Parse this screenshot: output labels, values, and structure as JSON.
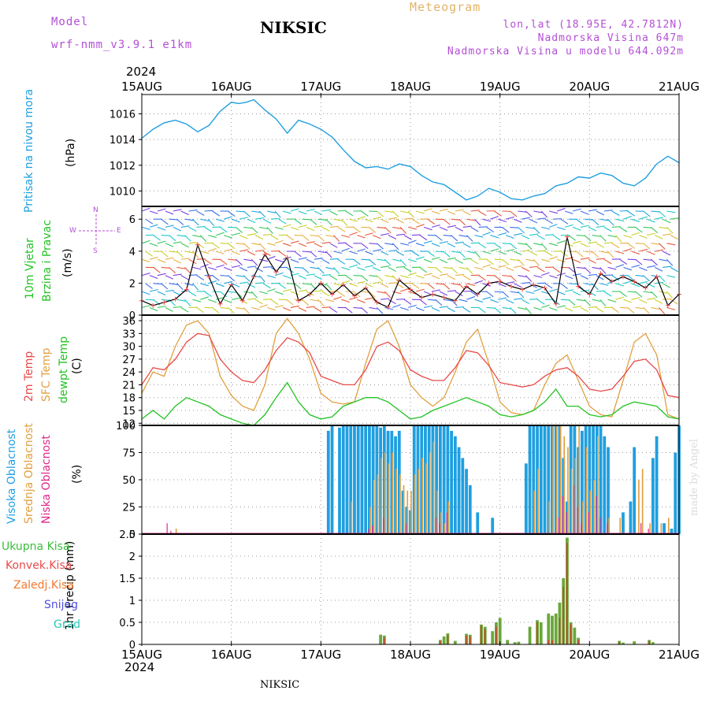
{
  "header": {
    "model_label": "Model",
    "model_name": "wrf-nmm_v3.9.1 e1km",
    "title": "NIKSIC",
    "meteogram": "Meteogram",
    "lonlat": "lon,lat (18.95E, 42.7812N)",
    "elev": "Nadmorska Visina 647m",
    "elev_model": "Nadmorska Visina u modelu 644.092m",
    "year_top": "2024",
    "year_bottom": "2024",
    "footer": "NIKSIC",
    "watermark": "made by Angel"
  },
  "labels": {
    "pressure_title": "Pritisak na nivou mora",
    "pressure_unit": "(hPa)",
    "wind_title_1": "10m Vjetar",
    "wind_title_2": "Brzina i Pravac",
    "wind_unit": "(m/s)",
    "compass_n": "N",
    "compass_s": "S",
    "compass_w": "W",
    "compass_e": "E",
    "temp_2m": "2m Temp",
    "temp_sfc": "SFC Temp",
    "temp_dew": "dewpt Temp",
    "temp_unit": "(C)",
    "cloud_high": "Visoka Oblacnost",
    "cloud_mid": "Srednja Oblacnost",
    "cloud_low": "Niska Oblacnost",
    "cloud_unit": "(%)",
    "precip_unit": "1hr Precip (mm)",
    "legend_total": "Ukupna Kisa",
    "legend_conv": "Konvek.Kisa",
    "legend_frozen": "Zaledj.Kisa",
    "legend_snow": "Snijeg",
    "legend_hail": "Grad"
  },
  "colors": {
    "pressure": "#1f9fe0",
    "wind_label": "#22c322",
    "compass": "#b44fd6",
    "temp_2m": "#e84a4a",
    "temp_sfc": "#e0a040",
    "temp_dew": "#22c322",
    "cloud_high": "#1f9fe0",
    "cloud_mid": "#e0a040",
    "cloud_low": "#e0268a",
    "precip_total": "#6aa83a",
    "precip_conv": "#d63a2a",
    "precip_frozen": "#f07a30",
    "precip_snow": "#5050e0",
    "precip_hail": "#28c8b8"
  },
  "chart_data": {
    "type": "line",
    "x_ticks": [
      "15AUG",
      "16AUG",
      "17AUG",
      "18AUG",
      "19AUG",
      "20AUG",
      "21AUG"
    ],
    "x_range_hours": [
      0,
      144
    ],
    "pressure": {
      "ylabel": "(hPa)",
      "ylim": [
        1008.8,
        1017.5
      ],
      "yticks": [
        1010,
        1012,
        1014,
        1016
      ],
      "x_hours": [
        0,
        3,
        6,
        9,
        12,
        15,
        18,
        21,
        24,
        26,
        28,
        30,
        33,
        36,
        39,
        42,
        45,
        48,
        51,
        54,
        57,
        60,
        63,
        66,
        69,
        72,
        75,
        78,
        81,
        84,
        87,
        90,
        93,
        96,
        99,
        102,
        105,
        108,
        111,
        114,
        117,
        120,
        123,
        126,
        129,
        132,
        135,
        138,
        141,
        144
      ],
      "values": [
        1014.1,
        1014.8,
        1015.3,
        1015.5,
        1015.2,
        1014.6,
        1015.1,
        1016.2,
        1016.9,
        1016.8,
        1016.9,
        1017.1,
        1016.3,
        1015.6,
        1014.5,
        1015.5,
        1015.2,
        1014.8,
        1014.2,
        1013.2,
        1012.3,
        1011.8,
        1011.9,
        1011.7,
        1012.1,
        1011.9,
        1011.2,
        1010.7,
        1010.5,
        1009.9,
        1009.3,
        1009.6,
        1010.2,
        1009.9,
        1009.4,
        1009.3,
        1009.6,
        1009.8,
        1010.4,
        1010.6,
        1011.1,
        1011.0,
        1011.4,
        1011.2,
        1010.6,
        1010.4,
        1011.0,
        1012.1,
        1012.7,
        1012.2
      ]
    },
    "wind": {
      "ylabel": "(m/s)",
      "ylim": [
        0,
        6.8
      ],
      "yticks": [
        0,
        2,
        4,
        6
      ],
      "x_hours": [
        0,
        3,
        6,
        9,
        12,
        15,
        18,
        21,
        24,
        27,
        30,
        33,
        36,
        39,
        42,
        45,
        48,
        51,
        54,
        57,
        60,
        63,
        66,
        69,
        72,
        75,
        78,
        81,
        84,
        87,
        90,
        93,
        96,
        99,
        102,
        105,
        108,
        111,
        114,
        117,
        120,
        123,
        126,
        129,
        132,
        135,
        138,
        141,
        144
      ],
      "values": [
        0.9,
        0.6,
        0.8,
        1.0,
        1.6,
        4.4,
        2.4,
        0.7,
        1.9,
        0.9,
        2.4,
        3.8,
        2.7,
        3.6,
        0.9,
        1.3,
        2.0,
        1.3,
        1.9,
        1.2,
        1.7,
        0.8,
        0.5,
        2.2,
        1.6,
        1.1,
        1.3,
        1.1,
        0.9,
        1.8,
        1.3,
        2.0,
        2.1,
        1.8,
        1.6,
        1.9,
        1.7,
        0.7,
        4.9,
        1.8,
        1.3,
        2.6,
        2.1,
        2.4,
        2.1,
        1.7,
        2.4,
        0.6,
        1.3
      ]
    },
    "temperature": {
      "ylabel": "(C)",
      "ylim": [
        11.5,
        37.3
      ],
      "yticks": [
        12,
        15,
        18,
        21,
        24,
        27,
        30,
        33,
        36
      ],
      "x_hours": [
        0,
        3,
        6,
        9,
        12,
        15,
        18,
        21,
        24,
        27,
        30,
        33,
        36,
        39,
        42,
        45,
        48,
        51,
        54,
        57,
        60,
        63,
        66,
        69,
        72,
        75,
        78,
        81,
        84,
        87,
        90,
        93,
        96,
        99,
        102,
        105,
        108,
        111,
        114,
        117,
        120,
        123,
        126,
        129,
        132,
        135,
        138,
        141,
        144
      ],
      "temp_2m": [
        21,
        25,
        24.5,
        27,
        31,
        33,
        32.5,
        27,
        24,
        22,
        21.5,
        24.5,
        29,
        32,
        31,
        28.5,
        23,
        22,
        21,
        21,
        24.5,
        30,
        31,
        29,
        24.5,
        23,
        22,
        22,
        25,
        29,
        28.5,
        25.5,
        21.5,
        21,
        20.5,
        21,
        23,
        24.5,
        25,
        23,
        20,
        19.5,
        20,
        23,
        26.5,
        27,
        24.5,
        18.5,
        18
      ],
      "temp_sfc": [
        19,
        24,
        23,
        30,
        35,
        36,
        33,
        23,
        18.5,
        16,
        15,
        21,
        33,
        36.5,
        33,
        27,
        19,
        17,
        16.5,
        17,
        26,
        34,
        36,
        30,
        21,
        18,
        16,
        18,
        24,
        31,
        34,
        26,
        17,
        14.5,
        14,
        15,
        21,
        26,
        28,
        22,
        16,
        14,
        13.5,
        22,
        31,
        33,
        28,
        14,
        13
      ],
      "temp_dew": [
        13,
        15,
        13,
        16,
        18,
        17,
        16,
        14,
        13,
        12,
        11.5,
        14,
        18,
        21.5,
        17,
        14,
        13,
        13.5,
        16,
        17,
        18,
        18,
        17,
        15,
        13,
        13.5,
        15,
        16,
        17,
        18,
        17,
        16,
        14,
        13.5,
        14,
        15,
        17,
        20,
        16,
        16,
        14,
        13.5,
        14,
        16,
        17,
        16.5,
        16,
        13.5,
        13
      ]
    },
    "cloud": {
      "ylabel": "(%)",
      "ylim": [
        0,
        100
      ],
      "yticks": [
        0,
        25,
        50,
        75,
        100
      ],
      "high": [
        [
          50,
          95
        ],
        [
          51,
          100
        ],
        [
          53,
          98
        ],
        [
          54,
          100
        ],
        [
          55,
          100
        ],
        [
          56,
          100
        ],
        [
          57,
          100
        ],
        [
          58,
          100
        ],
        [
          59,
          100
        ],
        [
          60,
          100
        ],
        [
          61,
          100
        ],
        [
          62,
          100
        ],
        [
          63,
          100
        ],
        [
          64,
          98
        ],
        [
          65,
          100
        ],
        [
          66,
          95
        ],
        [
          67,
          95
        ],
        [
          68,
          90
        ],
        [
          69,
          95
        ],
        [
          70,
          40
        ],
        [
          71,
          25
        ],
        [
          72,
          22
        ],
        [
          73,
          100
        ],
        [
          74,
          100
        ],
        [
          75,
          100
        ],
        [
          76,
          100
        ],
        [
          77,
          100
        ],
        [
          78,
          100
        ],
        [
          79,
          100
        ],
        [
          80,
          100
        ],
        [
          81,
          100
        ],
        [
          82,
          100
        ],
        [
          83,
          95
        ],
        [
          84,
          90
        ],
        [
          85,
          80
        ],
        [
          86,
          70
        ],
        [
          87,
          60
        ],
        [
          88,
          45
        ],
        [
          90,
          20
        ],
        [
          94,
          15
        ],
        [
          103,
          65
        ],
        [
          104,
          100
        ],
        [
          105,
          100
        ],
        [
          106,
          100
        ],
        [
          107,
          100
        ],
        [
          108,
          100
        ],
        [
          109,
          100
        ],
        [
          110,
          100
        ],
        [
          111,
          100
        ],
        [
          112,
          100
        ],
        [
          113,
          70
        ],
        [
          114,
          30
        ],
        [
          115,
          100
        ],
        [
          116,
          100
        ],
        [
          117,
          80
        ],
        [
          118,
          95
        ],
        [
          119,
          100
        ],
        [
          120,
          100
        ],
        [
          121,
          100
        ],
        [
          122,
          100
        ],
        [
          123,
          100
        ],
        [
          124,
          90
        ],
        [
          125,
          80
        ],
        [
          129,
          20
        ],
        [
          131,
          30
        ],
        [
          132,
          80
        ],
        [
          137,
          70
        ],
        [
          138,
          90
        ],
        [
          140,
          10
        ],
        [
          142,
          5
        ],
        [
          143,
          75
        ],
        [
          144,
          100
        ]
      ],
      "mid": [
        [
          9,
          5
        ],
        [
          56,
          30
        ],
        [
          61,
          25
        ],
        [
          62,
          50
        ],
        [
          63,
          55
        ],
        [
          64,
          70
        ],
        [
          65,
          75
        ],
        [
          66,
          65
        ],
        [
          67,
          75
        ],
        [
          68,
          60
        ],
        [
          69,
          55
        ],
        [
          70,
          45
        ],
        [
          71,
          40
        ],
        [
          72,
          40
        ],
        [
          73,
          55
        ],
        [
          74,
          60
        ],
        [
          75,
          70
        ],
        [
          76,
          65
        ],
        [
          77,
          75
        ],
        [
          78,
          85
        ],
        [
          79,
          40
        ],
        [
          80,
          20
        ],
        [
          81,
          10
        ],
        [
          82,
          30
        ],
        [
          105,
          40
        ],
        [
          106,
          60
        ],
        [
          109,
          30
        ],
        [
          110,
          100
        ],
        [
          111,
          100
        ],
        [
          112,
          100
        ],
        [
          113,
          90
        ],
        [
          114,
          80
        ],
        [
          115,
          60
        ],
        [
          116,
          70
        ],
        [
          117,
          100
        ],
        [
          118,
          30
        ],
        [
          119,
          80
        ],
        [
          120,
          40
        ],
        [
          121,
          50
        ],
        [
          122,
          90
        ],
        [
          125,
          15
        ],
        [
          128,
          15
        ],
        [
          133,
          50
        ],
        [
          134,
          60
        ],
        [
          136,
          10
        ],
        [
          139,
          10
        ],
        [
          141,
          15
        ]
      ],
      "low": [
        [
          7,
          10
        ],
        [
          8,
          3
        ],
        [
          61,
          5
        ],
        [
          62,
          8
        ],
        [
          65,
          15
        ],
        [
          71,
          10
        ],
        [
          79,
          15
        ],
        [
          80,
          10
        ],
        [
          82,
          20
        ],
        [
          112,
          15
        ],
        [
          113,
          35
        ],
        [
          114,
          20
        ],
        [
          116,
          45
        ],
        [
          117,
          25
        ],
        [
          118,
          10
        ],
        [
          120,
          20
        ],
        [
          122,
          35
        ],
        [
          123,
          15
        ],
        [
          125,
          10
        ],
        [
          134,
          10
        ],
        [
          136,
          5
        ]
      ]
    },
    "precip": {
      "ylabel": "1hr Precip (mm)",
      "ylim": [
        0,
        2.5
      ],
      "yticks": [
        0,
        0.5,
        1,
        1.5,
        2,
        2.5
      ],
      "total": [
        [
          64,
          0.22
        ],
        [
          65,
          0.2
        ],
        [
          80,
          0.1
        ],
        [
          81,
          0.18
        ],
        [
          82,
          0.25
        ],
        [
          84,
          0.08
        ],
        [
          87,
          0.24
        ],
        [
          88,
          0.22
        ],
        [
          91,
          0.45
        ],
        [
          92,
          0.4
        ],
        [
          94,
          0.3
        ],
        [
          95,
          0.5
        ],
        [
          96,
          0.6
        ],
        [
          98,
          0.1
        ],
        [
          100,
          0.05
        ],
        [
          101,
          0.06
        ],
        [
          104,
          0.4
        ],
        [
          106,
          0.55
        ],
        [
          107,
          0.5
        ],
        [
          109,
          0.7
        ],
        [
          110,
          0.65
        ],
        [
          111,
          0.7
        ],
        [
          112,
          0.95
        ],
        [
          113,
          1.5
        ],
        [
          114,
          2.42
        ],
        [
          115,
          0.5
        ],
        [
          116,
          0.38
        ],
        [
          117,
          0.15
        ],
        [
          128,
          0.08
        ],
        [
          129,
          0.04
        ],
        [
          132,
          0.07
        ],
        [
          136,
          0.1
        ],
        [
          137,
          0.05
        ]
      ],
      "conv": [
        [
          65,
          0.15
        ],
        [
          80,
          0.08
        ],
        [
          82,
          0.2
        ],
        [
          87,
          0.2
        ],
        [
          88,
          0.18
        ],
        [
          91,
          0.43
        ],
        [
          92,
          0.35
        ],
        [
          95,
          0.4
        ],
        [
          106,
          0.5
        ],
        [
          109,
          0.1
        ],
        [
          110,
          0.1
        ],
        [
          112,
          0.6
        ],
        [
          113,
          1.3
        ],
        [
          114,
          2.3
        ],
        [
          115,
          0.45
        ],
        [
          117,
          0.1
        ],
        [
          128,
          0.06
        ],
        [
          136,
          0.08
        ]
      ]
    }
  }
}
